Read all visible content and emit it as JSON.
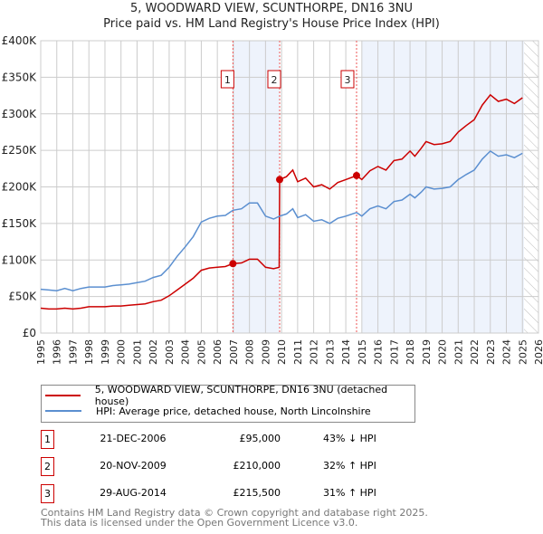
{
  "title_line1": "5, WOODWARD VIEW, SCUNTHORPE, DN16 3NU",
  "title_line2": "Price paid vs. HM Land Registry's House Price Index (HPI)",
  "colors": {
    "property": "#cc0000",
    "hpi": "#5b8fd0",
    "shade": "#eef3fc"
  },
  "chart_data": {
    "type": "line",
    "title": "Price paid vs. HM Land Registry's House Price Index (HPI)",
    "xlim": [
      1995,
      2026
    ],
    "ylim": [
      0,
      400000
    ],
    "y_ticks": [
      {
        "v": 0,
        "label": "£0"
      },
      {
        "v": 50000,
        "label": "£50K"
      },
      {
        "v": 100000,
        "label": "£100K"
      },
      {
        "v": 150000,
        "label": "£150K"
      },
      {
        "v": 200000,
        "label": "£200K"
      },
      {
        "v": 250000,
        "label": "£250K"
      },
      {
        "v": 300000,
        "label": "£300K"
      },
      {
        "v": 350000,
        "label": "£350K"
      },
      {
        "v": 400000,
        "label": "£400K"
      }
    ],
    "x_ticks": [
      "1995",
      "1996",
      "1997",
      "1998",
      "1999",
      "2000",
      "2001",
      "2002",
      "2003",
      "2004",
      "2005",
      "2006",
      "2007",
      "2008",
      "2009",
      "2010",
      "2011",
      "2012",
      "2013",
      "2014",
      "2015",
      "2016",
      "2017",
      "2018",
      "2019",
      "2020",
      "2021",
      "2022",
      "2023",
      "2024",
      "2025",
      "2026"
    ],
    "grid": true,
    "shaded_ranges": [
      [
        2006.97,
        2009.88
      ],
      [
        2015.0,
        2025.1
      ]
    ],
    "hatched_from": 2025.1,
    "series": [
      {
        "name": "5, WOODWARD VIEW, SCUNTHORPE, DN16 3NU (detached house)",
        "key": "property",
        "points": [
          [
            1995,
            34
          ],
          [
            1995.5,
            33
          ],
          [
            1996,
            33
          ],
          [
            1996.5,
            34
          ],
          [
            1997,
            33
          ],
          [
            1997.5,
            34
          ],
          [
            1998,
            36
          ],
          [
            1998.5,
            36
          ],
          [
            1999,
            36
          ],
          [
            1999.5,
            37
          ],
          [
            2000,
            37
          ],
          [
            2000.5,
            38
          ],
          [
            2001,
            39
          ],
          [
            2001.5,
            40
          ],
          [
            2002,
            43
          ],
          [
            2002.5,
            45
          ],
          [
            2003,
            51
          ],
          [
            2003.5,
            59
          ],
          [
            2004,
            67
          ],
          [
            2004.5,
            75
          ],
          [
            2005,
            86
          ],
          [
            2005.5,
            89
          ],
          [
            2006,
            90
          ],
          [
            2006.5,
            91
          ],
          [
            2006.97,
            95
          ],
          [
            2007.5,
            96
          ],
          [
            2008,
            101
          ],
          [
            2008.5,
            101
          ],
          [
            2009,
            90
          ],
          [
            2009.5,
            88
          ],
          [
            2009.85,
            90
          ],
          [
            2009.88,
            210
          ],
          [
            2010.3,
            214
          ],
          [
            2010.7,
            223
          ],
          [
            2011,
            207
          ],
          [
            2011.5,
            212
          ],
          [
            2012,
            200
          ],
          [
            2012.5,
            203
          ],
          [
            2013,
            197
          ],
          [
            2013.5,
            206
          ],
          [
            2014,
            210
          ],
          [
            2014.67,
            215.5
          ],
          [
            2015,
            210
          ],
          [
            2015.5,
            222
          ],
          [
            2016,
            228
          ],
          [
            2016.5,
            223
          ],
          [
            2017,
            236
          ],
          [
            2017.5,
            238
          ],
          [
            2018,
            249
          ],
          [
            2018.3,
            242
          ],
          [
            2018.7,
            253
          ],
          [
            2019,
            262
          ],
          [
            2019.5,
            258
          ],
          [
            2020,
            259
          ],
          [
            2020.5,
            262
          ],
          [
            2021,
            275
          ],
          [
            2021.5,
            284
          ],
          [
            2022,
            292
          ],
          [
            2022.5,
            312
          ],
          [
            2023,
            326
          ],
          [
            2023.5,
            317
          ],
          [
            2024,
            320
          ],
          [
            2024.5,
            314
          ],
          [
            2025,
            322
          ]
        ]
      },
      {
        "name": "HPI: Average price, detached house, North Lincolnshire",
        "key": "hpi",
        "points": [
          [
            1995,
            60
          ],
          [
            1995.5,
            59
          ],
          [
            1996,
            58
          ],
          [
            1996.5,
            61
          ],
          [
            1997,
            58
          ],
          [
            1997.5,
            61
          ],
          [
            1998,
            63
          ],
          [
            1998.5,
            63
          ],
          [
            1999,
            63
          ],
          [
            1999.5,
            65
          ],
          [
            2000,
            66
          ],
          [
            2000.5,
            67
          ],
          [
            2001,
            69
          ],
          [
            2001.5,
            71
          ],
          [
            2002,
            76
          ],
          [
            2002.5,
            79
          ],
          [
            2003,
            90
          ],
          [
            2003.5,
            105
          ],
          [
            2004,
            118
          ],
          [
            2004.5,
            132
          ],
          [
            2005,
            152
          ],
          [
            2005.5,
            157
          ],
          [
            2006,
            160
          ],
          [
            2006.5,
            161
          ],
          [
            2006.97,
            168
          ],
          [
            2007.5,
            170
          ],
          [
            2008,
            178
          ],
          [
            2008.5,
            178
          ],
          [
            2009,
            160
          ],
          [
            2009.5,
            156
          ],
          [
            2009.88,
            160
          ],
          [
            2010.3,
            163
          ],
          [
            2010.7,
            170
          ],
          [
            2011,
            158
          ],
          [
            2011.5,
            162
          ],
          [
            2012,
            153
          ],
          [
            2012.5,
            155
          ],
          [
            2013,
            150
          ],
          [
            2013.5,
            157
          ],
          [
            2014,
            160
          ],
          [
            2014.67,
            165
          ],
          [
            2015,
            160
          ],
          [
            2015.5,
            170
          ],
          [
            2016,
            174
          ],
          [
            2016.5,
            170
          ],
          [
            2017,
            180
          ],
          [
            2017.5,
            182
          ],
          [
            2018,
            190
          ],
          [
            2018.3,
            185
          ],
          [
            2018.7,
            193
          ],
          [
            2019,
            200
          ],
          [
            2019.5,
            197
          ],
          [
            2020,
            198
          ],
          [
            2020.5,
            200
          ],
          [
            2021,
            210
          ],
          [
            2021.5,
            217
          ],
          [
            2022,
            223
          ],
          [
            2022.5,
            238
          ],
          [
            2023,
            249
          ],
          [
            2023.5,
            242
          ],
          [
            2024,
            244
          ],
          [
            2024.5,
            240
          ],
          [
            2025,
            246
          ]
        ]
      }
    ],
    "sales": [
      {
        "num": "1",
        "year": 2006.97,
        "value": 95000
      },
      {
        "num": "2",
        "year": 2009.88,
        "value": 210000
      },
      {
        "num": "3",
        "year": 2014.67,
        "value": 215500
      }
    ]
  },
  "legend": {
    "property": "5, WOODWARD VIEW, SCUNTHORPE, DN16 3NU (detached house)",
    "hpi": "HPI: Average price, detached house, North Lincolnshire"
  },
  "sales_table": [
    {
      "num": "1",
      "date": "21-DEC-2006",
      "price": "£95,000",
      "hpi": "43% ↓ HPI"
    },
    {
      "num": "2",
      "date": "20-NOV-2009",
      "price": "£210,000",
      "hpi": "32% ↑ HPI"
    },
    {
      "num": "3",
      "date": "29-AUG-2014",
      "price": "£215,500",
      "hpi": "31% ↑ HPI"
    }
  ],
  "footer": {
    "line1": "Contains HM Land Registry data © Crown copyright and database right 2025.",
    "line2": "This data is licensed under the Open Government Licence v3.0."
  }
}
